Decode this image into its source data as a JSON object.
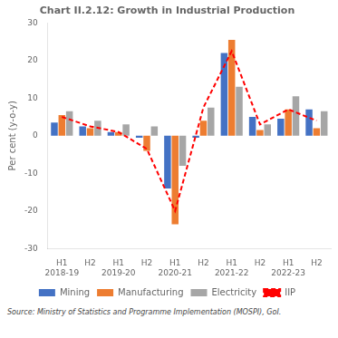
{
  "chart_data": {
    "type": "bar",
    "title": "Chart II.2.12: Growth in Industrial Production",
    "ylabel": "Per cent (y-o-y)",
    "annotations": [
      "Source: Ministry of Statistics and Programme Implementation (MOSPI), GoI."
    ],
    "categories": [
      "H1\n2018-19",
      "H2",
      "H1\n2019-20",
      "H2",
      "H1\n2020-21",
      "H2",
      "H1\n2021-22",
      "H2",
      "H1\n2022-23",
      "H2"
    ],
    "series": [
      {
        "name": "Mining",
        "color": "#4472c4",
        "values": [
          3.5,
          2.5,
          1.0,
          -0.5,
          -14.0,
          -0.5,
          22.0,
          5.0,
          4.5,
          7.0
        ]
      },
      {
        "name": "Manufacturing",
        "color": "#ed7d31",
        "values": [
          5.5,
          2.0,
          1.0,
          -4.0,
          -23.5,
          4.0,
          25.5,
          1.5,
          7.0,
          2.0
        ]
      },
      {
        "name": "Electricity",
        "color": "#a6a6a6",
        "values": [
          6.5,
          4.0,
          3.0,
          2.5,
          -8.0,
          7.5,
          13.0,
          3.0,
          10.5,
          6.5
        ]
      },
      {
        "name": "IIP",
        "type": "line",
        "line_style": "dashed",
        "color": "#ff0000",
        "values": [
          5.0,
          2.5,
          1.0,
          -3.5,
          -20.0,
          7.5,
          22.5,
          3.0,
          7.0,
          4.0
        ]
      }
    ],
    "ylim": [
      -30,
      30
    ],
    "yticks": [
      -30,
      -20,
      -10,
      0,
      10,
      20,
      30
    ],
    "grid": false,
    "legend": "bottom"
  }
}
